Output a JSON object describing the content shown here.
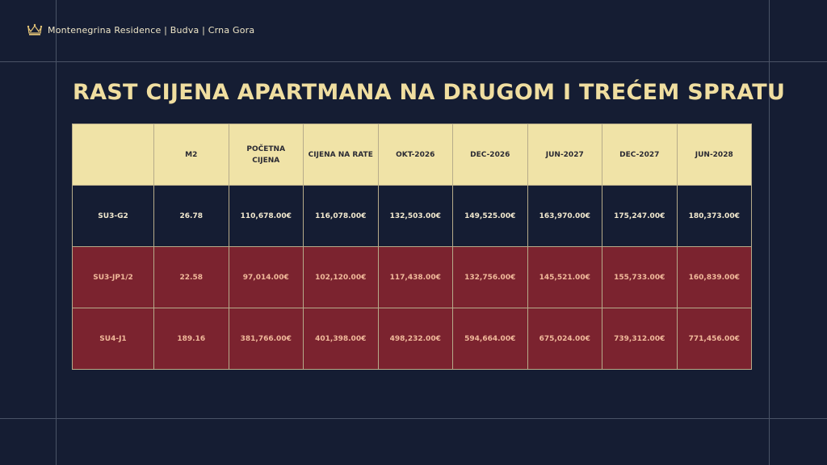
{
  "header": {
    "brand": "Montenegrina Residence | Budva | Crna Gora",
    "logo_icon": "crown-icon"
  },
  "title": "RAST CIJENA APARTMANA NA DRUGOM I TREĆEM SPRATU",
  "colors": {
    "background": "#151d33",
    "accent": "#f0dea0",
    "header_row": "#f0e3a7",
    "highlight_row": "#7b232f"
  },
  "table": {
    "columns": [
      "",
      "M2",
      "POČETNA CIJENA",
      "CIJENA NA RATE",
      "OKT-2026",
      "DEC-2026",
      "JUN-2027",
      "DEC-2027",
      "JUN-2028"
    ],
    "rows": [
      [
        "SU3-G2",
        "26.78",
        "110,678.00€",
        "116,078.00€",
        "132,503.00€",
        "149,525.00€",
        "163,970.00€",
        "175,247.00€",
        "180,373.00€"
      ],
      [
        "SU3-JP1/2",
        "22.58",
        "97,014.00€",
        "102,120.00€",
        "117,438.00€",
        "132,756.00€",
        "145,521.00€",
        "155,733.00€",
        "160,839.00€"
      ],
      [
        "SU4-J1",
        "189.16",
        "381,766.00€",
        "401,398.00€",
        "498,232.00€",
        "594,664.00€",
        "675,024.00€",
        "739,312.00€",
        "771,456.00€"
      ]
    ]
  }
}
